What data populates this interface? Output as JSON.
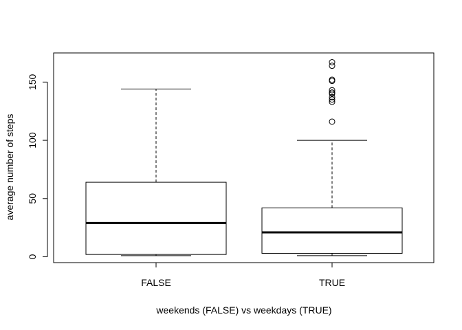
{
  "chart_data": {
    "type": "boxplot",
    "title": "",
    "xlabel": "weekends (FALSE) vs weekdays (TRUE)",
    "ylabel": "average number of steps",
    "categories": [
      "FALSE",
      "TRUE"
    ],
    "ylim": [
      -5,
      175
    ],
    "yticks": [
      0,
      50,
      100,
      150
    ],
    "ytick_labels": [
      "0",
      "50",
      "100",
      "150"
    ],
    "grid": false,
    "boxes": [
      {
        "category": "FALSE",
        "min": 1,
        "q1": 2,
        "median": 29,
        "q3": 64,
        "max": 144,
        "outliers": []
      },
      {
        "category": "TRUE",
        "min": 1,
        "q1": 3,
        "median": 21,
        "q3": 42,
        "max": 100,
        "outliers": [
          116,
          133,
          135,
          137,
          140,
          141,
          143,
          151,
          152,
          164,
          167
        ]
      }
    ]
  }
}
